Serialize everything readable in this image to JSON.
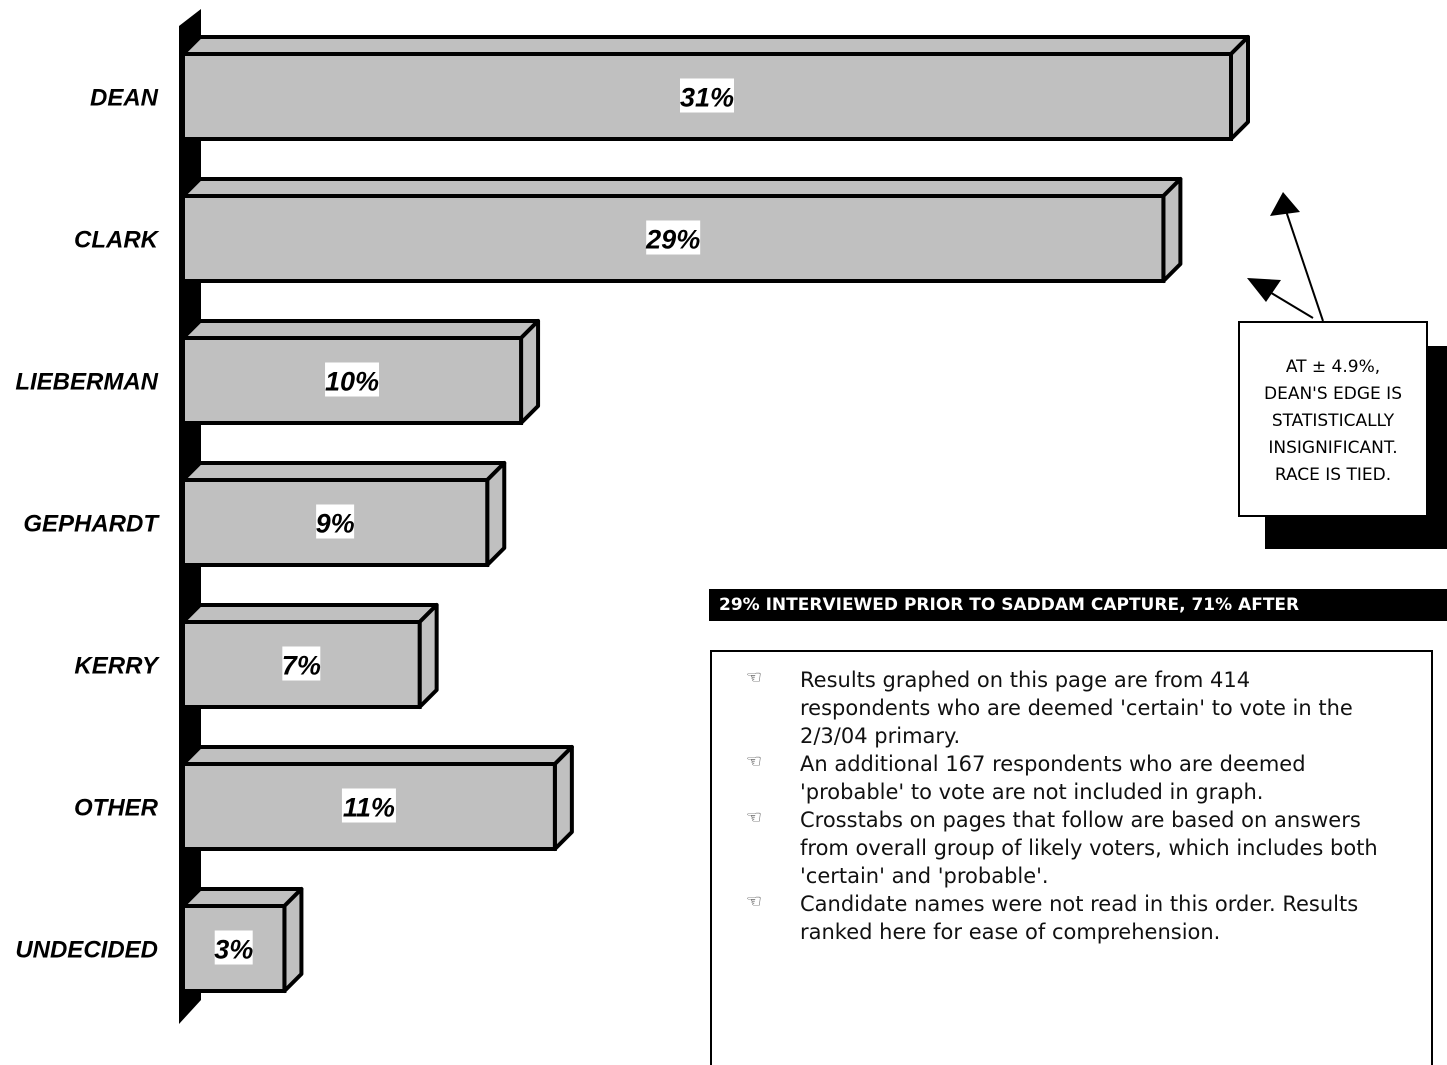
{
  "chart_data": {
    "type": "bar",
    "orientation": "horizontal",
    "categories": [
      "DEAN",
      "CLARK",
      "LIEBERMAN",
      "GEPHARDT",
      "KERRY",
      "OTHER",
      "UNDECIDED"
    ],
    "values": [
      31,
      29,
      10,
      9,
      7,
      11,
      3
    ],
    "value_labels": [
      "31%",
      "29%",
      "10%",
      "9%",
      "7%",
      "11%",
      "3%"
    ],
    "unit": "%",
    "bar_color": "#c0c0c0",
    "grid": false,
    "legend": "none"
  },
  "callout": {
    "lines": [
      "AT ± 4.9%,",
      "DEAN'S EDGE IS",
      "STATISTICALLY",
      "INSIGNIFICANT.",
      "RACE IS TIED."
    ]
  },
  "banner": {
    "text": "29% INTERVIEWED PRIOR TO SADDAM CAPTURE, 71% AFTER"
  },
  "notes": {
    "bullet_icon": "pointing-hand-icon",
    "items": [
      "Results graphed on this page are from 414 respondents who are deemed 'certain' to vote in the 2/3/04 primary.",
      "An additional 167 respondents who are deemed 'probable' to vote are not included in graph.",
      "Crosstabs on pages that follow are based on answers from overall group of likely voters, which includes both 'certain' and 'probable'.",
      "Candidate names were not read in this order. Results ranked here for ease of comprehension."
    ]
  }
}
